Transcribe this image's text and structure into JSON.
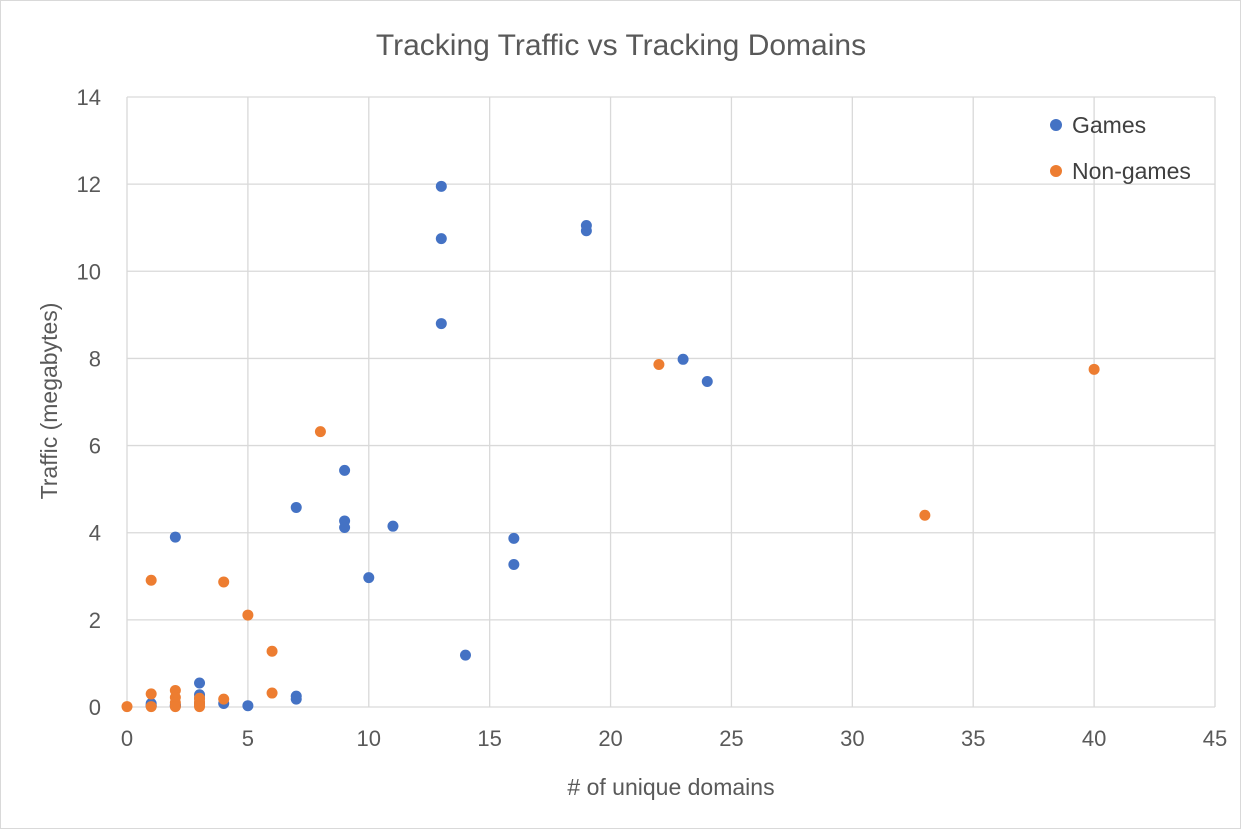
{
  "chart_data": {
    "type": "scatter",
    "title": "Tracking Traffic vs Tracking Domains",
    "xlabel": "# of unique domains",
    "ylabel": "Traffic (megabytes)",
    "xlim": [
      0,
      45
    ],
    "ylim": [
      0,
      14
    ],
    "xticks": [
      "0",
      "5",
      "10",
      "15",
      "20",
      "25",
      "30",
      "35",
      "40",
      "45"
    ],
    "yticks": [
      "0",
      "2",
      "4",
      "6",
      "8",
      "10",
      "12",
      "14"
    ],
    "grid": true,
    "legend_position": "top-right",
    "series": [
      {
        "name": "Games",
        "color": "#4472C4",
        "points": [
          [
            13,
            11.95
          ],
          [
            13,
            10.75
          ],
          [
            13,
            8.8
          ],
          [
            19,
            11.05
          ],
          [
            19,
            10.93
          ],
          [
            23,
            7.98
          ],
          [
            24,
            7.47
          ],
          [
            9,
            5.43
          ],
          [
            9,
            4.27
          ],
          [
            9,
            4.12
          ],
          [
            7,
            4.58
          ],
          [
            11,
            4.15
          ],
          [
            2,
            3.9
          ],
          [
            16,
            3.87
          ],
          [
            16,
            3.27
          ],
          [
            10,
            2.97
          ],
          [
            14,
            1.19
          ],
          [
            3,
            0.55
          ],
          [
            3,
            0.28
          ],
          [
            3,
            0.2
          ],
          [
            3,
            0.08
          ],
          [
            7,
            0.25
          ],
          [
            7,
            0.18
          ],
          [
            4,
            0.08
          ],
          [
            5,
            0.03
          ],
          [
            1,
            0.08
          ],
          [
            1,
            0.04
          ],
          [
            1,
            0.02
          ],
          [
            2,
            0.05
          ],
          [
            2,
            0.03
          ],
          [
            2,
            0.02
          ]
        ]
      },
      {
        "name": "Non-games",
        "color": "#ED7D31",
        "points": [
          [
            22,
            7.86
          ],
          [
            40,
            7.75
          ],
          [
            8,
            6.32
          ],
          [
            33,
            4.4
          ],
          [
            1,
            2.91
          ],
          [
            4,
            2.87
          ],
          [
            5,
            2.11
          ],
          [
            6,
            1.28
          ],
          [
            6,
            0.32
          ],
          [
            1,
            0.3
          ],
          [
            2,
            0.38
          ],
          [
            2,
            0.22
          ],
          [
            2,
            0.1
          ],
          [
            3,
            0.2
          ],
          [
            3,
            0.12
          ],
          [
            3,
            0.05
          ],
          [
            3,
            0.01
          ],
          [
            4,
            0.18
          ],
          [
            0,
            0.01
          ],
          [
            1,
            0.01
          ],
          [
            2,
            0.01
          ]
        ]
      }
    ]
  }
}
